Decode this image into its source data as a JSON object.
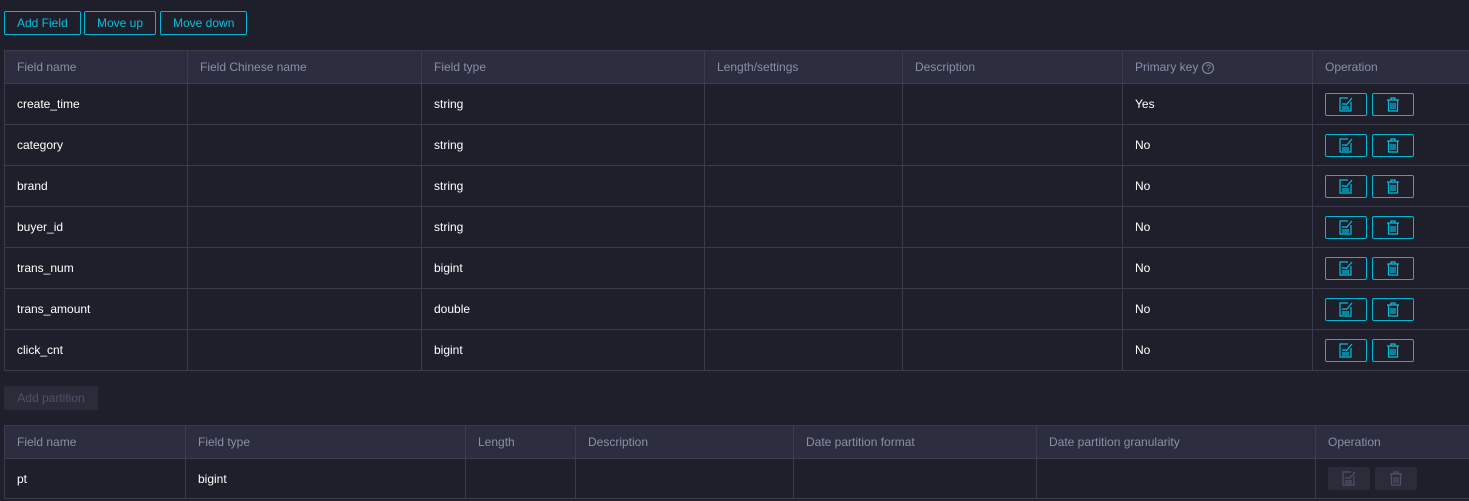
{
  "toolbar": {
    "add_field": "Add Field",
    "move_up": "Move up",
    "move_down": "Move down"
  },
  "fields_table": {
    "headers": [
      "Field name",
      "Field Chinese name",
      "Field type",
      "Length/settings",
      "Description",
      "Primary key",
      "Operation"
    ],
    "primary_key_help_icon": "question-circle-icon",
    "rows": [
      {
        "name": "create_time",
        "chinese_name": "",
        "type": "string",
        "length": "",
        "description": "",
        "primary_key": "Yes"
      },
      {
        "name": "category",
        "chinese_name": "",
        "type": "string",
        "length": "",
        "description": "",
        "primary_key": "No"
      },
      {
        "name": "brand",
        "chinese_name": "",
        "type": "string",
        "length": "",
        "description": "",
        "primary_key": "No"
      },
      {
        "name": "buyer_id",
        "chinese_name": "",
        "type": "string",
        "length": "",
        "description": "",
        "primary_key": "No"
      },
      {
        "name": "trans_num",
        "chinese_name": "",
        "type": "bigint",
        "length": "",
        "description": "",
        "primary_key": "No"
      },
      {
        "name": "trans_amount",
        "chinese_name": "",
        "type": "double",
        "length": "",
        "description": "",
        "primary_key": "No"
      },
      {
        "name": "click_cnt",
        "chinese_name": "",
        "type": "bigint",
        "length": "",
        "description": "",
        "primary_key": "No"
      }
    ]
  },
  "add_partition": "Add partition",
  "partition_table": {
    "headers": [
      "Field name",
      "Field type",
      "Length",
      "Description",
      "Date partition format",
      "Date partition granularity",
      "Operation"
    ],
    "rows": [
      {
        "name": "pt",
        "type": "bigint",
        "length": "",
        "description": "",
        "format": "",
        "granularity": ""
      }
    ]
  },
  "colors": {
    "accent": "#00c1de",
    "background": "#1e1f2b",
    "header": "#2c2e3f",
    "disabled": "#4f5266"
  }
}
